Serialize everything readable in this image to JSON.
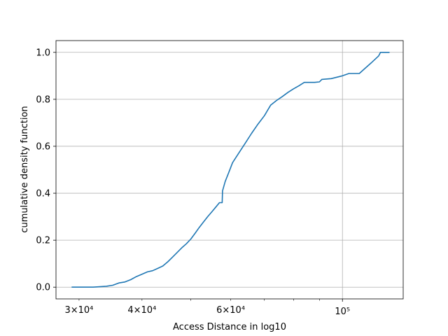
{
  "chart_data": {
    "type": "line",
    "title": "",
    "xlabel": "Access Distance in log10",
    "ylabel": "cumulative density function",
    "xscale": "log",
    "xlim": [
      27000,
      132000
    ],
    "ylim": [
      -0.05,
      1.05
    ],
    "grid": true,
    "line_color": "#1f77b4",
    "x_major_ticks": [
      {
        "value": 100000,
        "label": "10⁵"
      }
    ],
    "x_minor_ticks": [
      {
        "value": 30000,
        "label": "3×10⁴"
      },
      {
        "value": 40000,
        "label": "4×10⁴"
      },
      {
        "value": 50000,
        "label": ""
      },
      {
        "value": 60000,
        "label": "6×10⁴"
      },
      {
        "value": 70000,
        "label": ""
      },
      {
        "value": 80000,
        "label": ""
      },
      {
        "value": 90000,
        "label": ""
      }
    ],
    "y_ticks": [
      {
        "value": 0.0,
        "label": "0.0"
      },
      {
        "value": 0.2,
        "label": "0.2"
      },
      {
        "value": 0.4,
        "label": "0.4"
      },
      {
        "value": 0.6,
        "label": "0.6"
      },
      {
        "value": 0.8,
        "label": "0.8"
      },
      {
        "value": 1.0,
        "label": "1.0"
      }
    ],
    "series": [
      {
        "x": [
          29000,
          32000,
          34000,
          35000,
          36000,
          37000,
          38000,
          39000,
          40000,
          41000,
          42000,
          43000,
          44000,
          45000,
          46000,
          47000,
          48000,
          49000,
          50000,
          51000,
          52000,
          53000,
          54000,
          55000,
          56000,
          57000,
          57700,
          57800,
          58500,
          59500,
          60500,
          62000,
          64000,
          66000,
          68000,
          70000,
          72000,
          74000,
          76000,
          78000,
          80000,
          82000,
          84000,
          86000,
          88000,
          90000,
          91000,
          95000,
          100000,
          103000,
          108000,
          110000,
          114000,
          118000,
          119000,
          124000
        ],
        "y": [
          0.0,
          0.0,
          0.004,
          0.008,
          0.018,
          0.022,
          0.032,
          0.045,
          0.055,
          0.065,
          0.07,
          0.08,
          0.09,
          0.108,
          0.128,
          0.148,
          0.168,
          0.185,
          0.205,
          0.23,
          0.255,
          0.278,
          0.3,
          0.32,
          0.34,
          0.36,
          0.36,
          0.41,
          0.45,
          0.49,
          0.53,
          0.565,
          0.61,
          0.655,
          0.695,
          0.73,
          0.775,
          0.795,
          0.812,
          0.83,
          0.845,
          0.858,
          0.872,
          0.872,
          0.872,
          0.874,
          0.885,
          0.888,
          0.9,
          0.91,
          0.91,
          0.925,
          0.955,
          0.985,
          1.0,
          1.0
        ]
      }
    ]
  }
}
